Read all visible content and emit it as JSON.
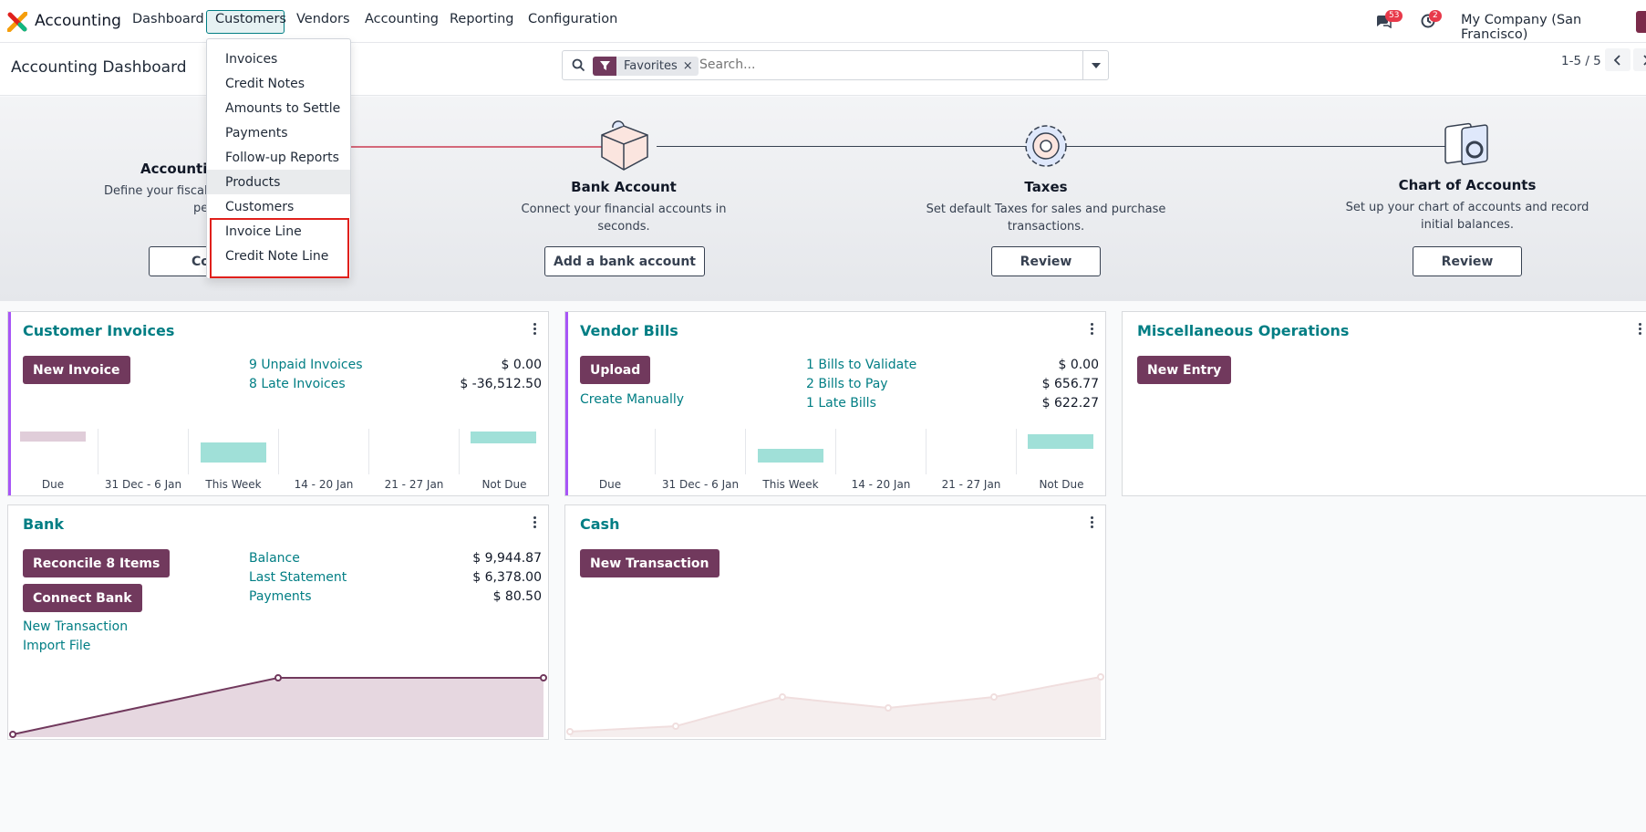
{
  "topbar": {
    "app_name": "Accounting",
    "nav": [
      "Dashboard",
      "Customers",
      "Vendors",
      "Accounting",
      "Reporting",
      "Configuration"
    ],
    "active_nav": "Customers",
    "messages_count": "53",
    "activities_count": "2",
    "company": "My Company (San Francisco)"
  },
  "subbar": {
    "title": "Accounting Dashboard",
    "facet_label": "Favorites",
    "facet_remove": "×",
    "search_placeholder": "Search...",
    "pager": "1-5 / 5"
  },
  "customers_menu": {
    "items": [
      "Invoices",
      "Credit Notes",
      "Amounts to Settle",
      "Payments",
      "Follow-up Reports",
      "Products",
      "Customers",
      "Invoice Line",
      "Credit Note Line"
    ],
    "hovered": "Products"
  },
  "onboarding": {
    "steps": [
      {
        "title": "Accountin",
        "desc1": "Define your fiscal y",
        "desc2": "period",
        "button": "Confi"
      },
      {
        "title": "Bank Account",
        "desc1": "Connect your financial accounts in",
        "desc2": "seconds.",
        "button": "Add a bank account"
      },
      {
        "title": "Taxes",
        "desc1": "Set default Taxes for sales and purchase",
        "desc2": "transactions.",
        "button": "Review"
      },
      {
        "title": "Chart of Accounts",
        "desc1": "Set up your chart of accounts and record",
        "desc2": "initial balances.",
        "button": "Review"
      }
    ]
  },
  "customer_invoices": {
    "title": "Customer Invoices",
    "button": "New Invoice",
    "stats": [
      {
        "label": "9 Unpaid Invoices",
        "amount": "$ 0.00"
      },
      {
        "label": "8 Late Invoices",
        "amount": "$ -36,512.50"
      }
    ],
    "chart_labels": [
      "Due",
      "31 Dec - 6 Jan",
      "This Week",
      "14 - 20 Jan",
      "21 - 27 Jan",
      "Not Due"
    ]
  },
  "vendor_bills": {
    "title": "Vendor Bills",
    "button": "Upload",
    "secondary_link": "Create Manually",
    "stats": [
      {
        "label": "1 Bills to Validate",
        "amount": "$ 0.00"
      },
      {
        "label": "2 Bills to Pay",
        "amount": "$ 656.77"
      },
      {
        "label": "1 Late Bills",
        "amount": "$ 622.27"
      }
    ],
    "chart_labels": [
      "Due",
      "31 Dec - 6 Jan",
      "This Week",
      "14 - 20 Jan",
      "21 - 27 Jan",
      "Not Due"
    ]
  },
  "misc_operations": {
    "title": "Miscellaneous Operations",
    "button": "New Entry"
  },
  "bank": {
    "title": "Bank",
    "button1": "Reconcile 8 Items",
    "button2": "Connect Bank",
    "links": [
      "New Transaction",
      "Import File"
    ],
    "stats": [
      {
        "label": "Balance",
        "amount": "$ 9,944.87"
      },
      {
        "label": "Last Statement",
        "amount": "$ 6,378.00"
      },
      {
        "label": "Payments",
        "amount": "$ 80.50"
      }
    ]
  },
  "cash": {
    "title": "Cash",
    "button": "New Transaction"
  },
  "colors": {
    "primary": "#71395d",
    "link": "#017e84",
    "bar_teal": "#a0e0d8",
    "bar_pink": "#e0cdd9",
    "highlight": "#e0201c"
  }
}
